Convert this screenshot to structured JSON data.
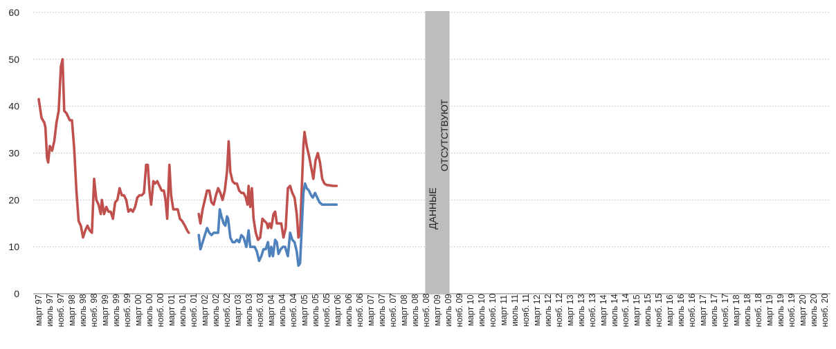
{
  "chart_data": {
    "type": "line",
    "title": "",
    "xlabel": "",
    "ylabel": "",
    "ylim": [
      0,
      60
    ],
    "yticks": [
      0,
      10,
      20,
      30,
      40,
      50,
      60
    ],
    "grid": "horizontal dashed",
    "legend": "none",
    "categories": [
      "март 97",
      "июль 97",
      "нояб. 97",
      "март 98",
      "июль 98",
      "нояб. 98",
      "март 99",
      "июль 99",
      "нояб. 99",
      "март 00",
      "июль 00",
      "нояб. 00",
      "март 01",
      "июль 01",
      "нояб. 01",
      "март 02",
      "июль 02",
      "нояб. 02",
      "март 03",
      "июль 03",
      "нояб. 03",
      "март 04",
      "июль 04",
      "нояб. 04",
      "март 05",
      "июль 05",
      "нояб. 05",
      "март 06",
      "июль 06",
      "нояб. 06",
      "март 07",
      "июль 07",
      "нояб. 07",
      "март 08",
      "июль 08",
      "нояб. 08",
      "март 09",
      "июль 09",
      "нояб. 09",
      "март 10",
      "июль 10",
      "нояб. 10",
      "март 11",
      "июль 11",
      "нояб. 11",
      "март 12",
      "июль 12",
      "нояб. 12",
      "март 13",
      "июль 13",
      "нояб. 13",
      "март 14",
      "июль 14",
      "нояб. 14",
      "март 15",
      "июль 15",
      "нояб. 15",
      "март 16",
      "июль 16",
      "нояб. 16",
      "март 17",
      "июль 17",
      "нояб. 17",
      "март 18",
      "июль 18",
      "нояб. 18",
      "март 19",
      "июль 19",
      "нояб. 19",
      "март 20",
      "июль 20",
      "нояб. 20"
    ],
    "no_data_band": {
      "from": "нояб. 08",
      "to": "июль 09",
      "label_1": "ДАННЫЕ",
      "label_2": "ОТСУТСТВУЮТ",
      "color": "#bdbdbd"
    },
    "series": [
      {
        "color": "#c0504d",
        "points": [
          [
            0,
            41.5
          ],
          [
            0.25,
            37.5
          ],
          [
            0.5,
            36.5
          ],
          [
            0.6,
            35.5
          ],
          [
            0.75,
            29
          ],
          [
            0.85,
            28
          ],
          [
            1,
            31.5
          ],
          [
            1.2,
            30.5
          ],
          [
            1.4,
            32.5
          ],
          [
            1.6,
            36.5
          ],
          [
            1.8,
            39
          ],
          [
            2,
            48.5
          ],
          [
            2.15,
            50
          ],
          [
            2.3,
            39
          ],
          [
            2.5,
            38.5
          ],
          [
            2.6,
            38
          ],
          [
            2.8,
            37
          ],
          [
            3,
            37
          ],
          [
            3.2,
            31
          ],
          [
            3.4,
            22
          ],
          [
            3.6,
            15.5
          ],
          [
            3.8,
            14.5
          ],
          [
            4,
            12
          ],
          [
            4.2,
            13.5
          ],
          [
            4.4,
            14.5
          ],
          [
            4.6,
            13.5
          ],
          [
            4.8,
            13
          ],
          [
            5,
            24.5
          ],
          [
            5.2,
            20
          ],
          [
            5.4,
            19
          ],
          [
            5.6,
            17
          ],
          [
            5.7,
            20
          ],
          [
            5.9,
            17
          ],
          [
            6.1,
            18.5
          ],
          [
            6.3,
            17.5
          ],
          [
            6.5,
            17.5
          ],
          [
            6.7,
            16
          ],
          [
            6.9,
            19.5
          ],
          [
            7.1,
            20
          ],
          [
            7.3,
            22.5
          ],
          [
            7.5,
            21
          ],
          [
            7.7,
            21
          ],
          [
            7.9,
            20
          ],
          [
            8.1,
            17.5
          ],
          [
            8.3,
            18
          ],
          [
            8.5,
            17.5
          ],
          [
            8.7,
            18.5
          ],
          [
            8.9,
            20.5
          ],
          [
            9.1,
            21
          ],
          [
            9.3,
            21
          ],
          [
            9.5,
            21.5
          ],
          [
            9.7,
            27.5
          ],
          [
            9.85,
            27.5
          ],
          [
            10,
            22
          ],
          [
            10.15,
            19
          ],
          [
            10.35,
            24
          ],
          [
            10.5,
            23.5
          ],
          [
            10.7,
            24
          ],
          [
            10.9,
            23
          ],
          [
            11.1,
            22
          ],
          [
            11.3,
            22
          ],
          [
            11.45,
            20
          ],
          [
            11.6,
            16
          ],
          [
            11.8,
            27.5
          ],
          [
            11.95,
            21
          ],
          [
            12.15,
            18
          ],
          [
            12.35,
            18
          ],
          [
            12.55,
            18
          ],
          [
            12.75,
            16
          ],
          [
            12.95,
            15.5
          ],
          [
            13.2,
            14.5
          ],
          [
            13.4,
            13.5
          ],
          [
            13.55,
            13
          ]
        ]
      },
      {
        "color": "#c0504d",
        "points": [
          [
            14.45,
            17
          ],
          [
            14.6,
            15
          ],
          [
            14.8,
            18
          ],
          [
            15,
            20
          ],
          [
            15.2,
            22
          ],
          [
            15.4,
            22
          ],
          [
            15.6,
            19.5
          ],
          [
            15.8,
            19
          ],
          [
            16,
            21
          ],
          [
            16.2,
            22.5
          ],
          [
            16.4,
            21.5
          ],
          [
            16.6,
            20
          ],
          [
            16.8,
            22
          ],
          [
            17,
            26
          ],
          [
            17.15,
            32.5
          ],
          [
            17.3,
            26
          ],
          [
            17.5,
            24
          ],
          [
            17.7,
            23.5
          ],
          [
            17.9,
            23.5
          ],
          [
            18.1,
            22
          ],
          [
            18.3,
            21.5
          ],
          [
            18.5,
            21.5
          ],
          [
            18.7,
            20.5
          ],
          [
            18.85,
            19
          ],
          [
            18.95,
            23
          ],
          [
            19.1,
            18.5
          ],
          [
            19.25,
            22.5
          ],
          [
            19.4,
            16
          ],
          [
            19.6,
            13
          ],
          [
            19.8,
            11.5
          ],
          [
            20,
            12
          ],
          [
            20.2,
            16
          ],
          [
            20.4,
            15.5
          ],
          [
            20.6,
            15
          ],
          [
            20.7,
            14
          ],
          [
            20.85,
            15
          ],
          [
            21,
            14
          ],
          [
            21.2,
            17
          ],
          [
            21.35,
            17.5
          ],
          [
            21.5,
            15
          ],
          [
            21.7,
            15
          ],
          [
            21.9,
            15
          ],
          [
            22.1,
            12
          ],
          [
            22.3,
            14
          ],
          [
            22.5,
            22.5
          ],
          [
            22.7,
            23
          ],
          [
            22.9,
            21.5
          ],
          [
            23.1,
            20.5
          ],
          [
            23.3,
            17
          ],
          [
            23.45,
            12
          ],
          [
            23.6,
            13
          ],
          [
            23.9,
            31.5
          ],
          [
            24,
            34.5
          ],
          [
            24.2,
            31.5
          ],
          [
            24.4,
            29.5
          ],
          [
            24.6,
            27
          ],
          [
            24.8,
            24.5
          ],
          [
            25,
            28.5
          ],
          [
            25.2,
            30
          ],
          [
            25.4,
            28
          ],
          [
            25.6,
            24.5
          ],
          [
            25.8,
            23.5
          ],
          [
            26,
            23.2
          ],
          [
            26.3,
            23.1
          ],
          [
            26.6,
            23
          ],
          [
            26.9,
            23
          ]
        ]
      },
      {
        "color": "#4f81bd",
        "points": [
          [
            14.45,
            12.5
          ],
          [
            14.6,
            9.5
          ],
          [
            14.8,
            11
          ],
          [
            15,
            12.5
          ],
          [
            15.2,
            14
          ],
          [
            15.4,
            13
          ],
          [
            15.6,
            12.5
          ],
          [
            15.8,
            13
          ],
          [
            16,
            13
          ],
          [
            16.2,
            13
          ],
          [
            16.35,
            18
          ],
          [
            16.5,
            16.5
          ],
          [
            16.7,
            15
          ],
          [
            16.85,
            14.5
          ],
          [
            17,
            16.5
          ],
          [
            17.1,
            16
          ],
          [
            17.3,
            12
          ],
          [
            17.5,
            11
          ],
          [
            17.7,
            11
          ],
          [
            17.9,
            11.5
          ],
          [
            18.1,
            11
          ],
          [
            18.3,
            12.5
          ],
          [
            18.5,
            12
          ],
          [
            18.75,
            10
          ],
          [
            18.95,
            13.5
          ],
          [
            19.1,
            10
          ],
          [
            19.3,
            10
          ],
          [
            19.5,
            10
          ],
          [
            19.7,
            9
          ],
          [
            19.9,
            7
          ],
          [
            20.1,
            8
          ],
          [
            20.3,
            9.5
          ],
          [
            20.5,
            9.5
          ],
          [
            20.7,
            11
          ],
          [
            20.85,
            8
          ],
          [
            21,
            10
          ],
          [
            21.15,
            8
          ],
          [
            21.35,
            11.5
          ],
          [
            21.5,
            11
          ],
          [
            21.65,
            8.5
          ],
          [
            21.85,
            9.5
          ],
          [
            22.05,
            10
          ],
          [
            22.25,
            10
          ],
          [
            22.5,
            8
          ],
          [
            22.7,
            13
          ],
          [
            22.9,
            11.5
          ],
          [
            23.1,
            11
          ],
          [
            23.3,
            9
          ],
          [
            23.45,
            6
          ],
          [
            23.6,
            6.5
          ],
          [
            23.9,
            21.5
          ],
          [
            24.05,
            23.5
          ],
          [
            24.2,
            22.5
          ],
          [
            24.4,
            22
          ],
          [
            24.6,
            21
          ],
          [
            24.75,
            20.5
          ],
          [
            24.95,
            21.5
          ],
          [
            25.15,
            20.5
          ],
          [
            25.35,
            19.5
          ],
          [
            25.6,
            19
          ],
          [
            26,
            19
          ],
          [
            26.5,
            19
          ],
          [
            26.9,
            19
          ]
        ]
      }
    ]
  }
}
